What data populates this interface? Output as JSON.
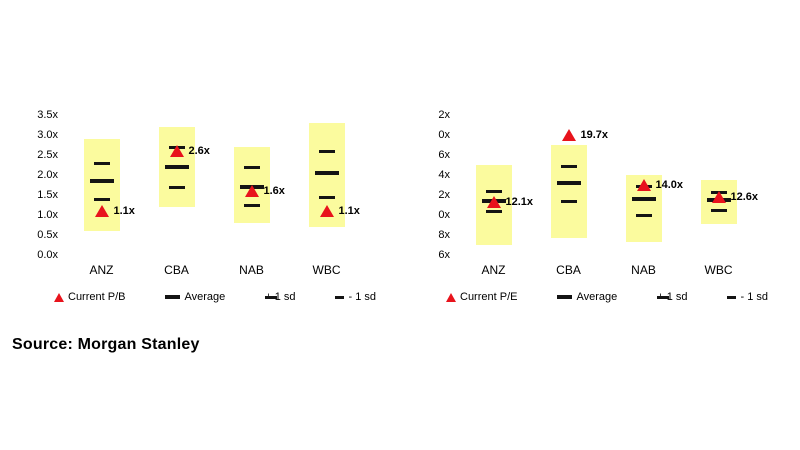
{
  "source": "Source: Morgan Stanley",
  "colors": {
    "band": "#FBFB9E",
    "marker": "#E8131C",
    "dash": "#141414",
    "background": "#FFFFFF"
  },
  "chart_data": [
    {
      "type": "range-marker",
      "title": "",
      "xlabel": "",
      "ylabel": "",
      "ylim": [
        0,
        3.5
      ],
      "y_tick_labels": [
        "3.5x",
        "3.0x",
        "2.5x",
        "2.0x",
        "1.5x",
        "1.0x",
        "0.5x",
        "0.0x"
      ],
      "categories": [
        "ANZ",
        "CBA",
        "NAB",
        "WBC"
      ],
      "series": {
        "band_low": [
          0.6,
          1.2,
          0.8,
          0.7
        ],
        "band_high": [
          2.9,
          3.2,
          2.7,
          3.3
        ],
        "plus_1sd": [
          2.3,
          2.7,
          2.2,
          2.6
        ],
        "average": [
          1.85,
          2.2,
          1.7,
          2.05
        ],
        "minus_1sd": [
          1.4,
          1.7,
          1.25,
          1.45
        ],
        "current": [
          1.1,
          2.6,
          1.6,
          1.1
        ],
        "current_labels": [
          "1.1x",
          "2.6x",
          "1.6x",
          "1.1x"
        ]
      },
      "legend": [
        {
          "label": "Current P/B",
          "symbol": "triangle"
        },
        {
          "label": "Average",
          "symbol": "thick-dash"
        },
        {
          "label": "+ 1 sd",
          "symbol": "dash"
        },
        {
          "label": "- 1 sd",
          "symbol": "short-dash"
        }
      ]
    },
    {
      "type": "range-marker",
      "title": "",
      "xlabel": "",
      "ylabel": "",
      "ylim": [
        6,
        22
      ],
      "y_tick_labels": [
        "2x",
        "0x",
        "6x",
        "4x",
        "2x",
        "0x",
        "8x",
        "6x"
      ],
      "categories": [
        "ANZ",
        "CBA",
        "NAB",
        "WBC"
      ],
      "series": {
        "band_low": [
          7.2,
          8.0,
          7.5,
          9.6
        ],
        "band_high": [
          16.3,
          18.6,
          15.2,
          14.6
        ],
        "plus_1sd": [
          13.3,
          16.2,
          13.9,
          13.2
        ],
        "average": [
          12.2,
          14.2,
          12.4,
          12.3
        ],
        "minus_1sd": [
          11.0,
          12.2,
          10.6,
          11.2
        ],
        "current": [
          12.1,
          19.7,
          14.0,
          12.6
        ],
        "current_labels": [
          "12.1x",
          "19.7x",
          "14.0x",
          "12.6x"
        ]
      },
      "legend": [
        {
          "label": "Current P/E",
          "symbol": "triangle"
        },
        {
          "label": "Average",
          "symbol": "thick-dash"
        },
        {
          "label": "+ 1 sd",
          "symbol": "dash"
        },
        {
          "label": "- 1 sd",
          "symbol": "short-dash"
        }
      ]
    }
  ]
}
